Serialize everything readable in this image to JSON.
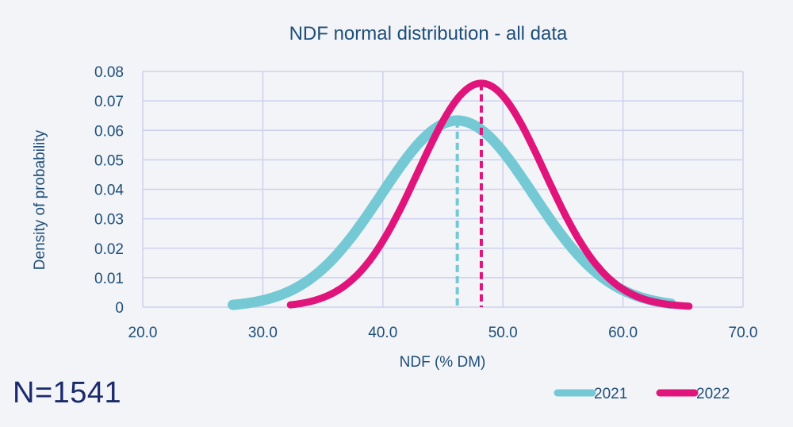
{
  "chart_data": {
    "type": "line",
    "title": "NDF normal distribution - all data",
    "xlabel": "NDF (% DM)",
    "ylabel": "Density of probability",
    "xlim": [
      20,
      70
    ],
    "ylim": [
      0,
      0.08
    ],
    "x_ticks": [
      "20.0",
      "30.0",
      "40.0",
      "50.0",
      "60.0",
      "70.0"
    ],
    "y_ticks": [
      "0",
      "0.01",
      "0.02",
      "0.03",
      "0.04",
      "0.05",
      "0.06",
      "0.07",
      "0.08"
    ],
    "grid": true,
    "legend_position": "bottom-right",
    "series": [
      {
        "name": "2021",
        "color": "#74c9d4",
        "mean": 46.2,
        "sd": 6.3,
        "x_range": [
          27.5,
          64.0
        ],
        "mean_line": 46.2
      },
      {
        "name": "2022",
        "color": "#e0147a",
        "mean": 48.2,
        "sd": 5.25,
        "x_range": [
          32.3,
          65.5
        ],
        "mean_line": 48.2
      }
    ]
  },
  "annotation": {
    "n_label": "N=1541"
  }
}
